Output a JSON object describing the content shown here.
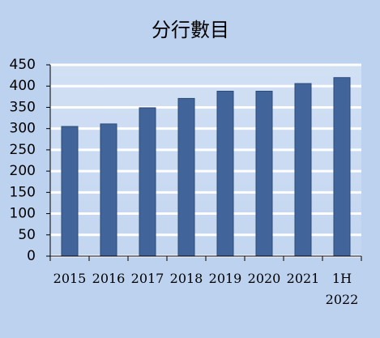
{
  "chart_data": {
    "type": "bar",
    "title": "分行數目",
    "categories": [
      "2015",
      "2016",
      "2017",
      "2018",
      "2019",
      "2020",
      "2021",
      "1H\n2022"
    ],
    "values": [
      305,
      311,
      349,
      371,
      388,
      388,
      406,
      420
    ],
    "color": "#41659a",
    "ylim": [
      0,
      450
    ],
    "yticks": [
      0,
      50,
      100,
      150,
      200,
      250,
      300,
      350,
      400,
      450
    ],
    "grid": true
  }
}
